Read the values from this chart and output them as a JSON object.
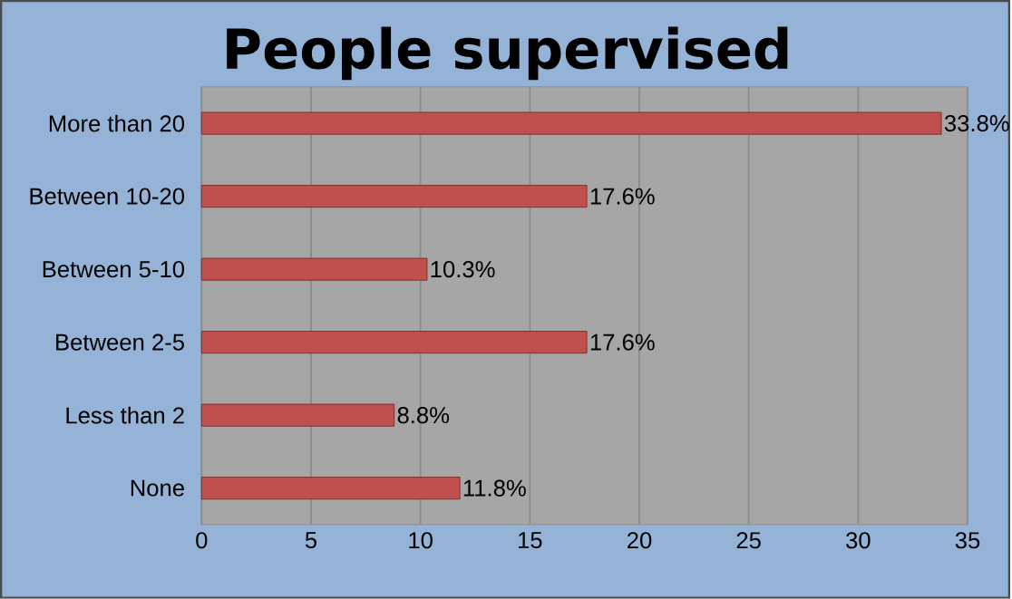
{
  "chart_data": {
    "type": "bar",
    "orientation": "horizontal",
    "title": "People supervised",
    "categories": [
      "More than 20",
      "Between 10-20",
      "Between 5-10",
      "Between 2-5",
      "Less than 2",
      "None"
    ],
    "values": [
      33.8,
      17.6,
      10.3,
      17.6,
      8.8,
      11.8
    ],
    "value_labels": [
      "33.8%",
      "17.6%",
      "10.3%",
      "17.6%",
      "8.8%",
      "11.8%"
    ],
    "color": "#c0504d",
    "xlim": [
      0,
      35
    ],
    "xticks": [
      0,
      5,
      10,
      15,
      20,
      25,
      30,
      35
    ],
    "grid": "x"
  }
}
